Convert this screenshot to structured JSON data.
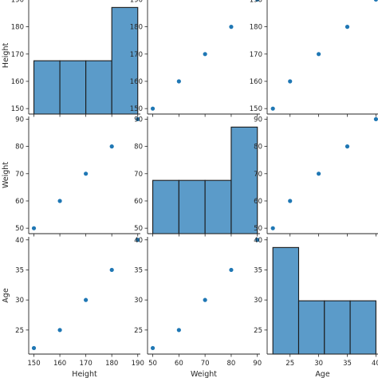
{
  "chart_data": {
    "type": "pairplot",
    "variables": [
      "Height",
      "Weight",
      "Age"
    ],
    "data": {
      "Height": [
        150,
        160,
        170,
        180,
        190
      ],
      "Weight": [
        50,
        60,
        70,
        80,
        90
      ],
      "Age": [
        22,
        25,
        30,
        35,
        40
      ]
    },
    "ranges": {
      "Height": [
        148,
        191
      ],
      "Weight": [
        48,
        91
      ],
      "Age": [
        21,
        40.5
      ]
    },
    "ticks": {
      "Height": [
        150,
        160,
        170,
        180,
        190
      ],
      "Weight": [
        50,
        60,
        70,
        80,
        90
      ],
      "Age": [
        25,
        30,
        35,
        40
      ]
    },
    "histograms": {
      "Height": {
        "edges": [
          150,
          160,
          170,
          180,
          190
        ],
        "counts": [
          1,
          1,
          1,
          2
        ]
      },
      "Weight": {
        "edges": [
          50,
          60,
          70,
          80,
          90
        ],
        "counts": [
          1,
          1,
          1,
          2
        ]
      },
      "Age": {
        "edges": [
          22,
          26.5,
          31,
          35.5,
          40
        ],
        "counts": [
          2,
          1,
          1,
          1
        ]
      }
    },
    "hist_max": 2.2,
    "grid": false,
    "colors": {
      "bar": "#5b9bc9",
      "point": "#1f77b4",
      "edge": "#262626",
      "bar_edge": "#1a1a1a"
    }
  }
}
